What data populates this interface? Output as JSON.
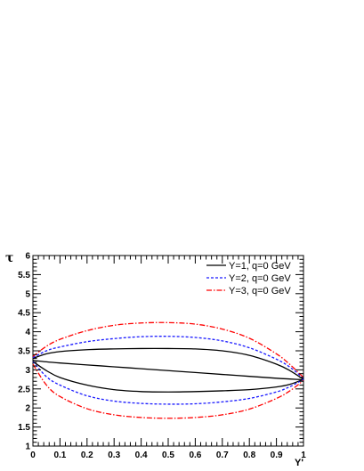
{
  "chart_data": {
    "type": "line",
    "xlabel": "Y'",
    "ylabel": "τ",
    "xlim": [
      0,
      1
    ],
    "ylim": [
      1,
      6
    ],
    "grid": false,
    "legend_position": "top-right",
    "x_ticks": [
      "0",
      "0.1",
      "0.2",
      "0.3",
      "0.4",
      "0.5",
      "0.6",
      "0.7",
      "0.8",
      "0.9",
      "1"
    ],
    "y_ticks": [
      "1",
      "1.5",
      "2",
      "2.5",
      "3",
      "3.5",
      "4",
      "4.5",
      "5",
      "5.5",
      "6"
    ],
    "series": [
      {
        "name": "Y=1, q=0 GeV",
        "color": "#000000",
        "dash": "solid",
        "x": [
          0,
          0.05,
          0.1,
          0.2,
          0.3,
          0.4,
          0.5,
          0.6,
          0.7,
          0.8,
          0.9,
          0.95,
          1
        ],
        "upper": [
          3.3,
          3.42,
          3.48,
          3.53,
          3.55,
          3.56,
          3.56,
          3.55,
          3.5,
          3.38,
          3.15,
          2.98,
          2.75
        ],
        "middle": [
          3.25,
          3.21,
          3.18,
          3.13,
          3.08,
          3.03,
          2.98,
          2.93,
          2.88,
          2.83,
          2.78,
          2.76,
          2.74
        ],
        "lower": [
          3.22,
          2.98,
          2.8,
          2.6,
          2.48,
          2.43,
          2.42,
          2.43,
          2.45,
          2.48,
          2.55,
          2.62,
          2.75
        ]
      },
      {
        "name": "Y=2, q=0 GeV",
        "color": "#1a1aff",
        "dash": "dashed",
        "x": [
          0,
          0.05,
          0.1,
          0.2,
          0.3,
          0.4,
          0.5,
          0.6,
          0.7,
          0.8,
          0.9,
          0.95,
          1
        ],
        "upper": [
          3.32,
          3.5,
          3.6,
          3.74,
          3.82,
          3.87,
          3.88,
          3.85,
          3.76,
          3.58,
          3.28,
          3.07,
          2.78
        ],
        "lower": [
          3.22,
          2.82,
          2.6,
          2.32,
          2.18,
          2.12,
          2.1,
          2.11,
          2.16,
          2.25,
          2.42,
          2.56,
          2.75
        ]
      },
      {
        "name": "Y=3, q=0 GeV",
        "color": "#ff0000",
        "dash": "dashdot",
        "x": [
          0,
          0.05,
          0.1,
          0.2,
          0.3,
          0.4,
          0.5,
          0.6,
          0.7,
          0.8,
          0.9,
          0.95,
          1
        ],
        "upper": [
          3.35,
          3.62,
          3.8,
          4.03,
          4.17,
          4.23,
          4.24,
          4.2,
          4.07,
          3.83,
          3.42,
          3.14,
          2.8
        ],
        "lower": [
          3.15,
          2.6,
          2.3,
          1.98,
          1.82,
          1.75,
          1.73,
          1.75,
          1.82,
          1.97,
          2.25,
          2.45,
          2.72
        ]
      }
    ]
  }
}
